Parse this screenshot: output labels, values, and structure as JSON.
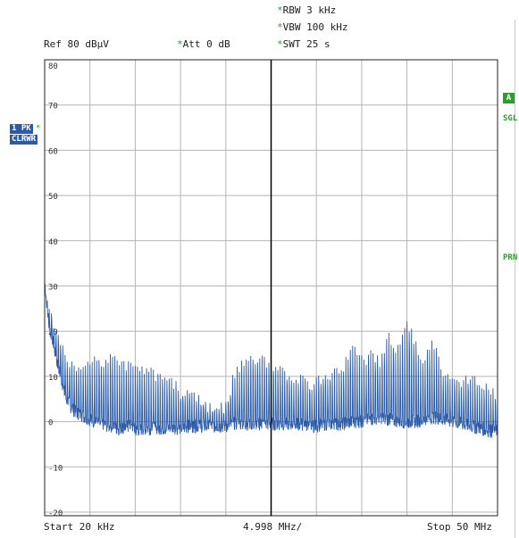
{
  "header": {
    "rbw": {
      "star": "*",
      "text": "RBW 3 kHz"
    },
    "vbw": {
      "star": "*",
      "text": "VBW 100 kHz"
    },
    "swt": {
      "star": "*",
      "text": "SWT 25 s"
    },
    "ref": "Ref  80 dBµV",
    "att": {
      "star": "*",
      "text": "Att  0 dB"
    }
  },
  "left_badges": {
    "trace": "1 PK",
    "trace_star": "*",
    "mode": "CLRWR"
  },
  "right_annotations": {
    "a": "A",
    "sgl": "SGL",
    "prn": "PRN"
  },
  "footer": {
    "start": "Start 20 kHz",
    "span_div": "4.998 MHz/",
    "stop": "Stop 50 MHz"
  },
  "chart_data": {
    "type": "line",
    "x_unit": "kHz",
    "y_unit": "dBµV",
    "xlim": [
      20,
      50000
    ],
    "ylim": [
      -25,
      80
    ],
    "y_ticks": [
      80,
      70,
      60,
      50,
      40,
      30,
      20,
      10,
      0,
      -10,
      -20
    ],
    "y_tick_labels": [
      "80",
      "70",
      "60",
      "50",
      "40",
      "30",
      "20",
      "10",
      "0",
      "-10",
      "-20"
    ],
    "grid": true,
    "trace_color": "#2a5aa8",
    "series": [
      {
        "x": [
          20,
          300,
          600,
          900,
          1200,
          1500,
          1800,
          2100,
          2400,
          2700,
          3000,
          3500,
          4000,
          4500,
          5000,
          5500,
          6000,
          6500,
          7000,
          7500,
          8000,
          8500,
          9000,
          9500,
          10000,
          11000,
          12000,
          13000,
          14000,
          15000,
          16000,
          17000,
          18000,
          19000,
          20000,
          21000,
          22000,
          23000,
          24000,
          25000,
          26000,
          27000,
          28000,
          29000,
          30000,
          31000,
          32000,
          33000,
          34000,
          35000,
          36000,
          37000,
          38000,
          39000,
          40000,
          41000,
          42000,
          43000,
          44000,
          45000,
          46000,
          47000,
          48000,
          49000,
          50000
        ],
        "y": [
          31,
          25,
          20,
          18,
          15,
          12,
          10,
          7,
          5,
          4,
          3,
          2,
          1.5,
          1,
          0.5,
          0,
          -0.5,
          -0.5,
          -1,
          -1,
          -1.5,
          -1.5,
          -1,
          -1,
          -2,
          -1.5,
          -1.5,
          -1.5,
          -1.5,
          -1.5,
          -1,
          -1,
          -1,
          -1,
          -1,
          -0.5,
          -0.5,
          -0.5,
          -0.5,
          -0.5,
          -0.5,
          -0.5,
          -0.5,
          -1,
          -1,
          -0.5,
          -0.5,
          -0.5,
          0,
          0,
          0.5,
          1,
          0.5,
          0,
          0,
          0,
          0.5,
          1,
          0.5,
          0,
          -0.5,
          -1,
          -1.5,
          -2,
          -2
        ]
      }
    ],
    "peaks_envelope": {
      "x": [
        20,
        1000,
        2000,
        3000,
        4000,
        5000,
        6000,
        7000,
        8000,
        9000,
        10000,
        11000,
        12000,
        13000,
        14000,
        15000,
        16000,
        17000,
        18000,
        19000,
        20000,
        21000,
        22000,
        23000,
        24000,
        25000,
        26000,
        27000,
        28000,
        29000,
        30000,
        31000,
        32000,
        33000,
        34000,
        35000,
        36000,
        37000,
        38000,
        39000,
        40000,
        41000,
        42000,
        43000,
        44000,
        45000,
        46000,
        47000,
        48000,
        49000,
        50000
      ],
      "y": [
        31,
        22,
        17,
        14,
        12,
        14,
        15,
        15,
        15,
        14,
        14,
        13,
        12,
        11,
        10,
        8,
        7,
        6,
        5,
        4,
        5,
        12,
        14,
        15,
        15,
        14,
        13,
        12,
        11,
        10,
        10,
        11,
        13,
        14,
        18,
        15,
        16,
        15,
        20,
        17,
        24,
        18,
        15,
        19,
        12,
        10,
        10,
        11,
        10,
        9,
        6
      ]
    }
  }
}
